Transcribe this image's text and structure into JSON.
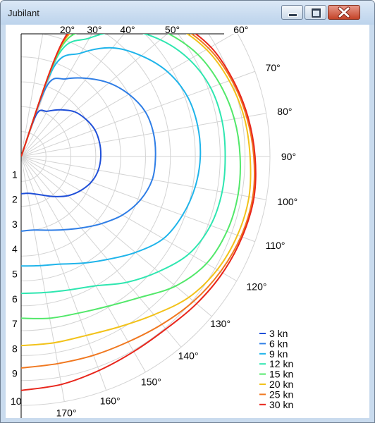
{
  "window": {
    "title": "Jubilant"
  },
  "chart_data": {
    "type": "polar-line",
    "angle_labels": [
      "20°",
      "30°",
      "40°",
      "50°",
      "60°",
      "70°",
      "80°",
      "90°",
      "100°",
      "110°",
      "120°",
      "130°",
      "140°",
      "150°",
      "160°",
      "170°"
    ],
    "radial_labels": [
      "1",
      "2",
      "3",
      "4",
      "5",
      "6",
      "7",
      "8",
      "9",
      "10"
    ],
    "radial_range": [
      0,
      10
    ],
    "angle_range_deg": [
      0,
      180
    ],
    "grid": true,
    "legend_position": "bottom-right",
    "series": [
      {
        "name": "3 kn",
        "color": "#1f4fd8",
        "points": [
          [
            20,
            1.8
          ],
          [
            30,
            2.1
          ],
          [
            40,
            2.45
          ],
          [
            50,
            2.8
          ],
          [
            60,
            3.0
          ],
          [
            70,
            3.15
          ],
          [
            80,
            3.2
          ],
          [
            90,
            3.2
          ],
          [
            100,
            3.15
          ],
          [
            110,
            3.0
          ],
          [
            120,
            2.75
          ],
          [
            130,
            2.45
          ],
          [
            140,
            2.1
          ],
          [
            150,
            1.8
          ],
          [
            160,
            1.6
          ],
          [
            170,
            1.5
          ],
          [
            180,
            1.5
          ]
        ]
      },
      {
        "name": "6 kn",
        "color": "#2f7ee6",
        "points": [
          [
            20,
            3.0
          ],
          [
            30,
            3.6
          ],
          [
            40,
            4.1
          ],
          [
            50,
            4.6
          ],
          [
            60,
            5.0
          ],
          [
            70,
            5.3
          ],
          [
            80,
            5.4
          ],
          [
            90,
            5.4
          ],
          [
            100,
            5.35
          ],
          [
            110,
            5.1
          ],
          [
            120,
            4.7
          ],
          [
            130,
            4.2
          ],
          [
            140,
            3.75
          ],
          [
            150,
            3.4
          ],
          [
            160,
            3.15
          ],
          [
            170,
            3.0
          ],
          [
            180,
            3.0
          ]
        ]
      },
      {
        "name": "9 kn",
        "color": "#1fb4ea",
        "points": [
          [
            20,
            3.8
          ],
          [
            30,
            4.8
          ],
          [
            40,
            5.7
          ],
          [
            50,
            6.3
          ],
          [
            60,
            6.8
          ],
          [
            70,
            7.1
          ],
          [
            80,
            7.2
          ],
          [
            90,
            7.2
          ],
          [
            100,
            7.1
          ],
          [
            110,
            6.9
          ],
          [
            120,
            6.6
          ],
          [
            130,
            6.0
          ],
          [
            140,
            5.4
          ],
          [
            150,
            4.95
          ],
          [
            160,
            4.6
          ],
          [
            170,
            4.45
          ],
          [
            180,
            4.4
          ]
        ]
      },
      {
        "name": "12 kn",
        "color": "#2ee6b0",
        "points": [
          [
            20,
            4.3
          ],
          [
            30,
            5.5
          ],
          [
            40,
            6.6
          ],
          [
            50,
            7.3
          ],
          [
            60,
            7.8
          ],
          [
            70,
            8.1
          ],
          [
            80,
            8.2
          ],
          [
            90,
            8.2
          ],
          [
            100,
            8.2
          ],
          [
            110,
            8.1
          ],
          [
            120,
            7.8
          ],
          [
            130,
            7.2
          ],
          [
            140,
            6.6
          ],
          [
            150,
            6.0
          ],
          [
            160,
            5.7
          ],
          [
            170,
            5.55
          ],
          [
            180,
            5.5
          ]
        ]
      },
      {
        "name": "15 kn",
        "color": "#52e86a",
        "points": [
          [
            20,
            4.6
          ],
          [
            30,
            5.9
          ],
          [
            40,
            7.1
          ],
          [
            50,
            7.7
          ],
          [
            60,
            8.2
          ],
          [
            70,
            8.5
          ],
          [
            80,
            8.7
          ],
          [
            90,
            8.8
          ],
          [
            100,
            8.85
          ],
          [
            110,
            8.8
          ],
          [
            120,
            8.6
          ],
          [
            130,
            8.1
          ],
          [
            140,
            7.4
          ],
          [
            150,
            6.95
          ],
          [
            160,
            6.7
          ],
          [
            170,
            6.6
          ],
          [
            180,
            6.5
          ]
        ]
      },
      {
        "name": "20 kn",
        "color": "#f2c21a",
        "points": [
          [
            20,
            4.8
          ],
          [
            30,
            6.2
          ],
          [
            40,
            7.4
          ],
          [
            50,
            8.1
          ],
          [
            60,
            8.6
          ],
          [
            70,
            8.9
          ],
          [
            80,
            9.1
          ],
          [
            90,
            9.2
          ],
          [
            100,
            9.3
          ],
          [
            110,
            9.25
          ],
          [
            120,
            9.1
          ],
          [
            130,
            8.8
          ],
          [
            140,
            8.3
          ],
          [
            150,
            7.9
          ],
          [
            160,
            7.65
          ],
          [
            170,
            7.6
          ],
          [
            180,
            7.6
          ]
        ]
      },
      {
        "name": "25 kn",
        "color": "#f07820",
        "points": [
          [
            20,
            4.9
          ],
          [
            30,
            6.3
          ],
          [
            40,
            7.5
          ],
          [
            50,
            8.2
          ],
          [
            60,
            8.7
          ],
          [
            70,
            9.0
          ],
          [
            80,
            9.2
          ],
          [
            90,
            9.35
          ],
          [
            100,
            9.45
          ],
          [
            110,
            9.4
          ],
          [
            120,
            9.25
          ],
          [
            130,
            9.05
          ],
          [
            140,
            8.8
          ],
          [
            150,
            8.6
          ],
          [
            160,
            8.5
          ],
          [
            170,
            8.45
          ],
          [
            180,
            8.5
          ]
        ]
      },
      {
        "name": "30 kn",
        "color": "#e8261c",
        "points": [
          [
            20,
            5.0
          ],
          [
            30,
            6.4
          ],
          [
            40,
            7.6
          ],
          [
            50,
            8.3
          ],
          [
            60,
            8.8
          ],
          [
            70,
            9.05
          ],
          [
            80,
            9.25
          ],
          [
            90,
            9.4
          ],
          [
            100,
            9.5
          ],
          [
            110,
            9.45
          ],
          [
            120,
            9.35
          ],
          [
            130,
            9.2
          ],
          [
            140,
            9.05
          ],
          [
            150,
            9.05
          ],
          [
            160,
            9.15
          ],
          [
            170,
            9.3
          ],
          [
            180,
            9.4
          ]
        ]
      }
    ]
  }
}
